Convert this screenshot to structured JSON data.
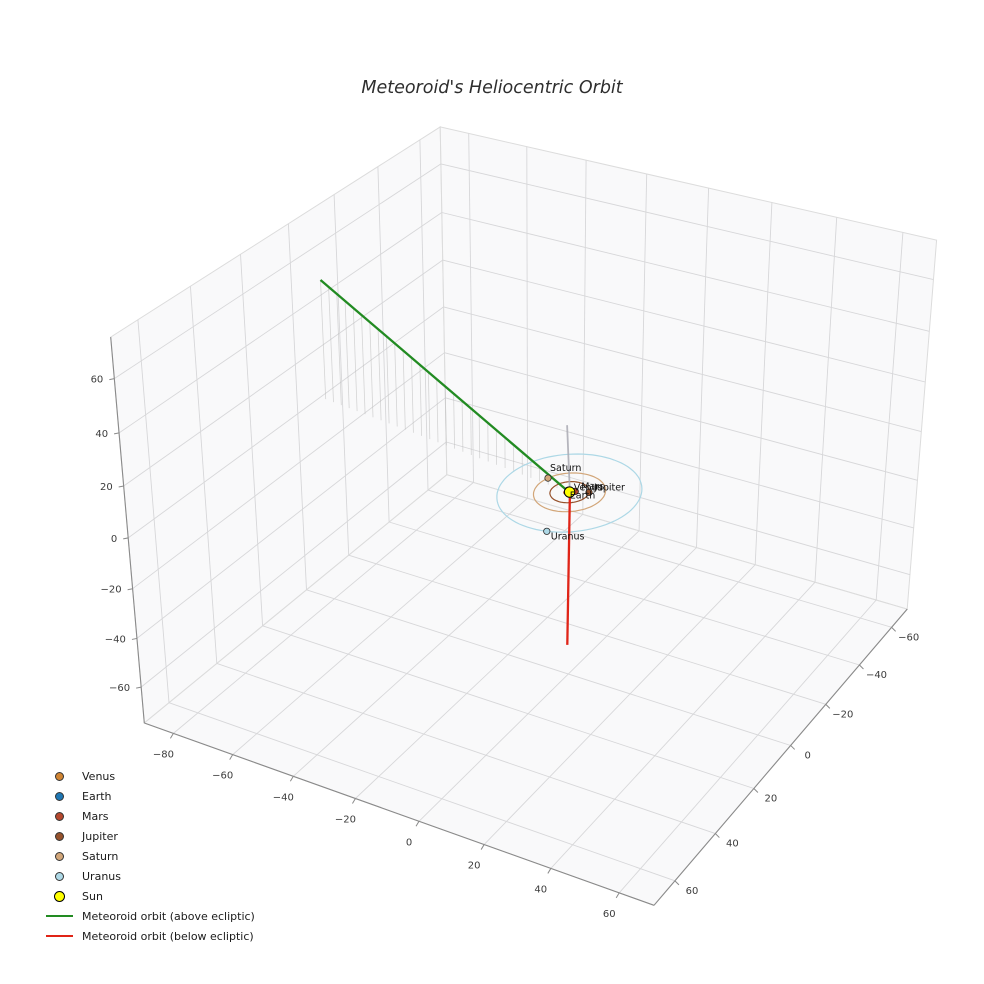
{
  "title": "Meteoroid's Heliocentric Orbit",
  "chart_data": {
    "type": "line3d",
    "title": "Meteoroid's Heliocentric Orbit",
    "background": "#ffffff",
    "view": {
      "elev_deg": 30,
      "azim_deg": -60,
      "projection": "persp"
    },
    "axes": {
      "grid": true,
      "x": {
        "limits": [
          -90,
          70
        ],
        "ticks": [
          -80,
          -60,
          -40,
          -20,
          0,
          20,
          40,
          60
        ]
      },
      "y": {
        "limits": [
          -70,
          70
        ],
        "ticks": [
          -60,
          -40,
          -20,
          0,
          20,
          40,
          60
        ]
      },
      "z": {
        "limits": [
          -75,
          75
        ],
        "ticks": [
          -60,
          -40,
          -20,
          0,
          20,
          40,
          60
        ]
      }
    },
    "sun": {
      "label": "Sun",
      "position": [
        0,
        0,
        0
      ],
      "color": "#ffff00",
      "edge_color": "#000000"
    },
    "planets": [
      {
        "name": "Venus",
        "orbit_radius_au": 0.72,
        "angle_deg": 30,
        "color": "#d08432"
      },
      {
        "name": "Earth",
        "orbit_radius_au": 1.0,
        "angle_deg": 210,
        "color": "#1f77b4"
      },
      {
        "name": "Mars",
        "orbit_radius_au": 1.52,
        "angle_deg": 320,
        "color": "#b5482d"
      },
      {
        "name": "Jupiter",
        "orbit_radius_au": 5.2,
        "angle_deg": 335,
        "color": "#96522c"
      },
      {
        "name": "Saturn",
        "orbit_radius_au": 9.54,
        "angle_deg": 200,
        "color": "#d2a679"
      },
      {
        "name": "Uranus",
        "orbit_radius_au": 19.2,
        "angle_deg": 75,
        "color": "#add8e6"
      }
    ],
    "meteoroid": {
      "above_ecliptic": {
        "label": "Meteoroid orbit (above ecliptic)",
        "color": "#228b22",
        "points": [
          [
            -88,
            -10,
            48
          ],
          [
            0.3,
            0.3,
            0
          ]
        ]
      },
      "below_ecliptic": {
        "label": "Meteoroid orbit (below ecliptic)",
        "color": "#e02417",
        "points": [
          [
            0.3,
            0.3,
            0
          ],
          [
            6,
            10,
            -52
          ]
        ]
      },
      "perihelion_segment": {
        "color": "#a9a9b2",
        "points": [
          [
            0.3,
            0.3,
            0
          ],
          [
            -0.4,
            0.8,
            26.6
          ]
        ]
      },
      "droplines": {
        "count": 28,
        "to_plane_z": 0,
        "color": "#bdbdbd"
      }
    },
    "legend": {
      "position": "lower-left",
      "frame": false,
      "items": [
        {
          "label": "Venus",
          "marker": "dot",
          "color": "#d08432"
        },
        {
          "label": "Earth",
          "marker": "dot",
          "color": "#1f77b4"
        },
        {
          "label": "Mars",
          "marker": "dot",
          "color": "#b5482d"
        },
        {
          "label": "Jupiter",
          "marker": "dot",
          "color": "#96522c"
        },
        {
          "label": "Saturn",
          "marker": "dot",
          "color": "#d2a679"
        },
        {
          "label": "Uranus",
          "marker": "dot",
          "color": "#add8e6"
        },
        {
          "label": "Sun",
          "marker": "dot",
          "color": "#ffff00"
        },
        {
          "label": "Meteoroid orbit (above ecliptic)",
          "marker": "line",
          "color": "#228b22"
        },
        {
          "label": "Meteoroid orbit (below ecliptic)",
          "marker": "line",
          "color": "#e02417"
        }
      ]
    }
  }
}
